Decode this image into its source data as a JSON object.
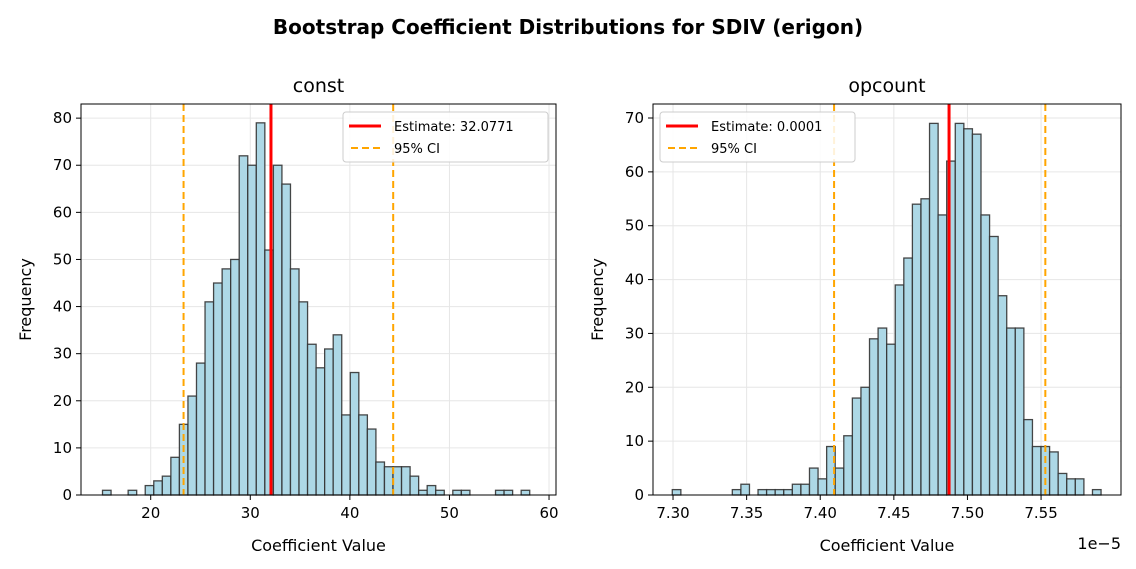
{
  "title": "Bootstrap Coefficient Distributions for SDIV (erigon)",
  "colors": {
    "bar_fill": "#add8e6",
    "bar_edge": "#333333",
    "estimate": "#ff0000",
    "ci": "#ffa500",
    "grid": "#e6e6e6"
  },
  "chart_data": [
    {
      "type": "bar",
      "title": "const",
      "xlabel": "Coefficient Value",
      "ylabel": "Frequency",
      "xlim": [
        13.0,
        60.7
      ],
      "ylim": [
        0,
        83
      ],
      "xticks": [
        20,
        30,
        40,
        50,
        60
      ],
      "xtick_labels": [
        "20",
        "30",
        "40",
        "50",
        "60"
      ],
      "yticks": [
        0,
        10,
        20,
        30,
        40,
        50,
        60,
        70,
        80
      ],
      "grid": true,
      "bin_start": 15.16,
      "bin_width": 0.858,
      "values": [
        1,
        0,
        0,
        1,
        0,
        2,
        3,
        4,
        8,
        15,
        21,
        28,
        41,
        45,
        48,
        50,
        72,
        70,
        79,
        52,
        70,
        66,
        48,
        41,
        32,
        27,
        31,
        34,
        17,
        26,
        17,
        14,
        7,
        6,
        6,
        6,
        4,
        1,
        2,
        1,
        0,
        1,
        1,
        0,
        0,
        0,
        1,
        1,
        0,
        1
      ],
      "estimate": 32.0771,
      "ci": [
        23.3,
        44.35
      ],
      "legend": {
        "position": "upper right",
        "estimate_label": "Estimate: 32.0771",
        "ci_label": "95% CI"
      },
      "offset_text": ""
    },
    {
      "type": "bar",
      "title": "opcount",
      "xlabel": "Coefficient Value",
      "ylabel": "Frequency",
      "xlim": [
        7.2864,
        7.6043
      ],
      "ylim": [
        0,
        72.6
      ],
      "xticks": [
        7.3,
        7.35,
        7.4,
        7.45,
        7.5,
        7.55
      ],
      "xtick_labels": [
        "7.30",
        "7.35",
        "7.40",
        "7.45",
        "7.50",
        "7.55"
      ],
      "yticks": [
        0,
        10,
        20,
        30,
        40,
        50,
        60,
        70
      ],
      "grid": true,
      "bin_start": 7.2995,
      "bin_width": 0.005825,
      "values": [
        1,
        0,
        0,
        0,
        0,
        0,
        0,
        1,
        2,
        0,
        1,
        1,
        1,
        1,
        2,
        2,
        5,
        3,
        9,
        5,
        11,
        18,
        20,
        29,
        31,
        28,
        39,
        44,
        54,
        55,
        69,
        52,
        62,
        69,
        68,
        67,
        52,
        48,
        37,
        31,
        31,
        14,
        9,
        9,
        8,
        4,
        3,
        3,
        0,
        1
      ],
      "estimate": 7.4875,
      "ci": [
        7.4094,
        7.5529
      ],
      "legend": {
        "position": "upper left",
        "estimate_label": "Estimate: 0.0001",
        "ci_label": "95% CI"
      },
      "offset_text": "1e−5"
    }
  ]
}
